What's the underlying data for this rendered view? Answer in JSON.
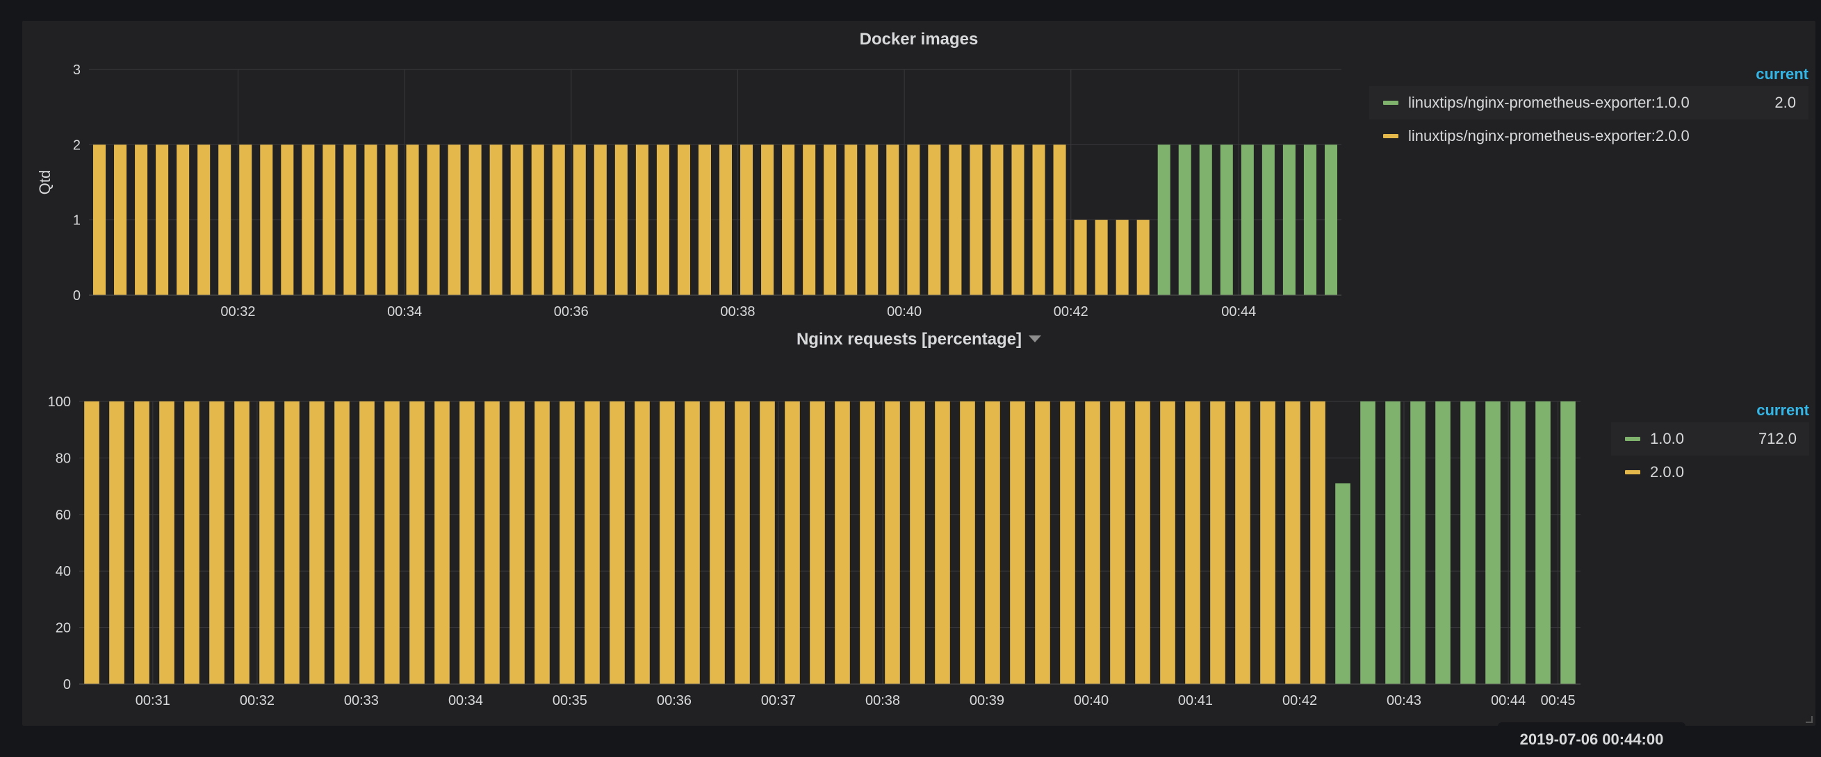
{
  "tooltip": {
    "time": "2019-07-06 00:44:00"
  },
  "colors": {
    "green": "#7eb26d",
    "yellow": "#e5b84b",
    "accent": "#33b5e5"
  },
  "panels": [
    {
      "title": "Docker images",
      "legend": {
        "header": "current",
        "items": [
          {
            "name": "linuxtips/nginx-prometheus-exporter:1.0.0",
            "value": "2.0",
            "color": "#7eb26d"
          },
          {
            "name": "linuxtips/nginx-prometheus-exporter:2.0.0",
            "value": "",
            "color": "#e5b84b"
          }
        ]
      }
    },
    {
      "title": "Nginx requests [percentage]",
      "legend": {
        "header": "current",
        "items": [
          {
            "name": "1.0.0",
            "value": "712.0",
            "color": "#7eb26d"
          },
          {
            "name": "2.0.0",
            "value": "",
            "color": "#e5b84b"
          }
        ]
      }
    }
  ],
  "chart_data": [
    {
      "type": "bar",
      "title": "Docker images",
      "ylabel": "Qtd",
      "xlabel": "",
      "ylim": [
        0,
        3
      ],
      "yticks": [
        "0",
        "1",
        "2",
        "3"
      ],
      "xticks": [
        "00:32",
        "00:34",
        "00:36",
        "00:38",
        "00:40",
        "00:42",
        "00:44"
      ],
      "grid": true,
      "legend_position": "right",
      "series": [
        {
          "name": "linuxtips/nginx-prometheus-exporter:2.0.0",
          "color": "#e5b84b",
          "values": [
            2,
            2,
            2,
            2,
            2,
            2,
            2,
            2,
            2,
            2,
            2,
            2,
            2,
            2,
            2,
            2,
            2,
            2,
            2,
            2,
            2,
            2,
            2,
            2,
            2,
            2,
            2,
            2,
            2,
            2,
            2,
            2,
            2,
            2,
            2,
            2,
            2,
            2,
            2,
            2,
            2,
            2,
            2,
            2,
            2,
            2,
            2,
            1,
            1,
            1,
            1,
            0,
            0,
            0,
            0,
            0,
            0,
            0,
            0,
            0
          ]
        },
        {
          "name": "linuxtips/nginx-prometheus-exporter:1.0.0",
          "color": "#7eb26d",
          "values": [
            0,
            0,
            0,
            0,
            0,
            0,
            0,
            0,
            0,
            0,
            0,
            0,
            0,
            0,
            0,
            0,
            0,
            0,
            0,
            0,
            0,
            0,
            0,
            0,
            0,
            0,
            0,
            0,
            0,
            0,
            0,
            0,
            0,
            0,
            0,
            0,
            0,
            0,
            0,
            0,
            0,
            0,
            0,
            0,
            0,
            0,
            0,
            0,
            0,
            0,
            0,
            2,
            2,
            2,
            2,
            2,
            2,
            2,
            2,
            2
          ]
        }
      ]
    },
    {
      "type": "bar",
      "title": "Nginx requests [percentage]",
      "ylabel": "",
      "xlabel": "",
      "ylim": [
        0,
        100
      ],
      "yticks": [
        "0",
        "20",
        "40",
        "60",
        "80",
        "100"
      ],
      "xticks": [
        "00:31",
        "00:32",
        "00:33",
        "00:34",
        "00:35",
        "00:36",
        "00:37",
        "00:38",
        "00:39",
        "00:40",
        "00:41",
        "00:42",
        "00:43",
        "00:44",
        "00:45"
      ],
      "grid": true,
      "legend_position": "right",
      "series": [
        {
          "name": "2.0.0",
          "color": "#e5b84b",
          "values": [
            100,
            100,
            100,
            100,
            100,
            100,
            100,
            100,
            100,
            100,
            100,
            100,
            100,
            100,
            100,
            100,
            100,
            100,
            100,
            100,
            100,
            100,
            100,
            100,
            100,
            100,
            100,
            100,
            100,
            100,
            100,
            100,
            100,
            100,
            100,
            100,
            100,
            100,
            100,
            100,
            100,
            100,
            100,
            100,
            100,
            100,
            100,
            100,
            100,
            100,
            0,
            0,
            0,
            0,
            0,
            0,
            0,
            0,
            0,
            0
          ]
        },
        {
          "name": "1.0.0",
          "color": "#7eb26d",
          "values": [
            0,
            0,
            0,
            0,
            0,
            0,
            0,
            0,
            0,
            0,
            0,
            0,
            0,
            0,
            0,
            0,
            0,
            0,
            0,
            0,
            0,
            0,
            0,
            0,
            0,
            0,
            0,
            0,
            0,
            0,
            0,
            0,
            0,
            0,
            0,
            0,
            0,
            0,
            0,
            0,
            0,
            0,
            0,
            0,
            0,
            0,
            0,
            0,
            0,
            0,
            71,
            100,
            100,
            100,
            100,
            100,
            100,
            100,
            100,
            100
          ]
        }
      ]
    }
  ]
}
